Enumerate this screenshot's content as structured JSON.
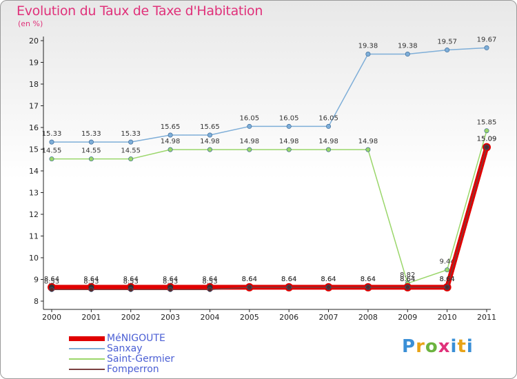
{
  "header": {
    "title": "Evolution du Taux de Taxe d'Habitation",
    "subtitle": "(en %)"
  },
  "logo_text": "Proxiti",
  "colors": {
    "title": "#e0317a",
    "axis": "#222222",
    "grid": "#cfcfcf"
  },
  "chart_data": {
    "type": "line",
    "title": "Evolution du Taux de Taxe d'Habitation",
    "subtitle": "(en %)",
    "xlabel": "",
    "ylabel": "",
    "x": [
      "2000",
      "2001",
      "2002",
      "2003",
      "2004",
      "2005",
      "2006",
      "2007",
      "2008",
      "2009",
      "2010",
      "2011"
    ],
    "ylim": [
      8,
      20
    ],
    "yticks": [
      8,
      9,
      10,
      11,
      12,
      13,
      14,
      15,
      16,
      17,
      18,
      19,
      20
    ],
    "grid": false,
    "legend_position": "bottom-left",
    "series": [
      {
        "name": "MéNIGOUTE",
        "color": "#e00000",
        "width": 7,
        "values": [
          8.64,
          8.64,
          8.64,
          8.64,
          8.64,
          8.64,
          8.64,
          8.64,
          8.64,
          8.64,
          8.64,
          15.09
        ],
        "labels": [
          "8.64",
          "8.64",
          "8.64",
          "8.64",
          "8.64",
          "8.64",
          "8.64",
          "8.64",
          "8.64",
          "8.64",
          "8.64",
          "15.09"
        ]
      },
      {
        "name": "Sanxay",
        "color": "#7eaed8",
        "width": 1.5,
        "values": [
          15.33,
          15.33,
          15.33,
          15.65,
          15.65,
          16.05,
          16.05,
          16.05,
          19.38,
          19.38,
          19.57,
          19.67
        ],
        "labels": [
          "15.33",
          "15.33",
          "15.33",
          "15.65",
          "15.65",
          "16.05",
          "16.05",
          "16.05",
          "19.38",
          "19.38",
          "19.57",
          "19.67"
        ]
      },
      {
        "name": "Saint-Germier",
        "color": "#9ad66a",
        "width": 1.5,
        "values": [
          14.55,
          14.55,
          14.55,
          14.98,
          14.98,
          14.98,
          14.98,
          14.98,
          14.98,
          8.82,
          9.44,
          15.85
        ],
        "labels": [
          "14.55",
          "14.55",
          "14.55",
          "14.98",
          "14.98",
          "14.98",
          "14.98",
          "14.98",
          "14.98",
          "8.82",
          "9.44",
          "15.85"
        ]
      },
      {
        "name": "Fomperron",
        "color": "#7a3f3f",
        "width": 1.5,
        "values": [
          8.53,
          8.53,
          8.53,
          8.53,
          8.53,
          8.64,
          8.64,
          8.64,
          8.64,
          8.64,
          8.64,
          15.09
        ],
        "labels": [
          "8.53",
          "8.53",
          "8.53",
          "8.53",
          "8.53",
          "8.64",
          "8.64",
          "8.64",
          "8.64",
          "8.64",
          "8.64",
          "15.09"
        ]
      }
    ]
  }
}
